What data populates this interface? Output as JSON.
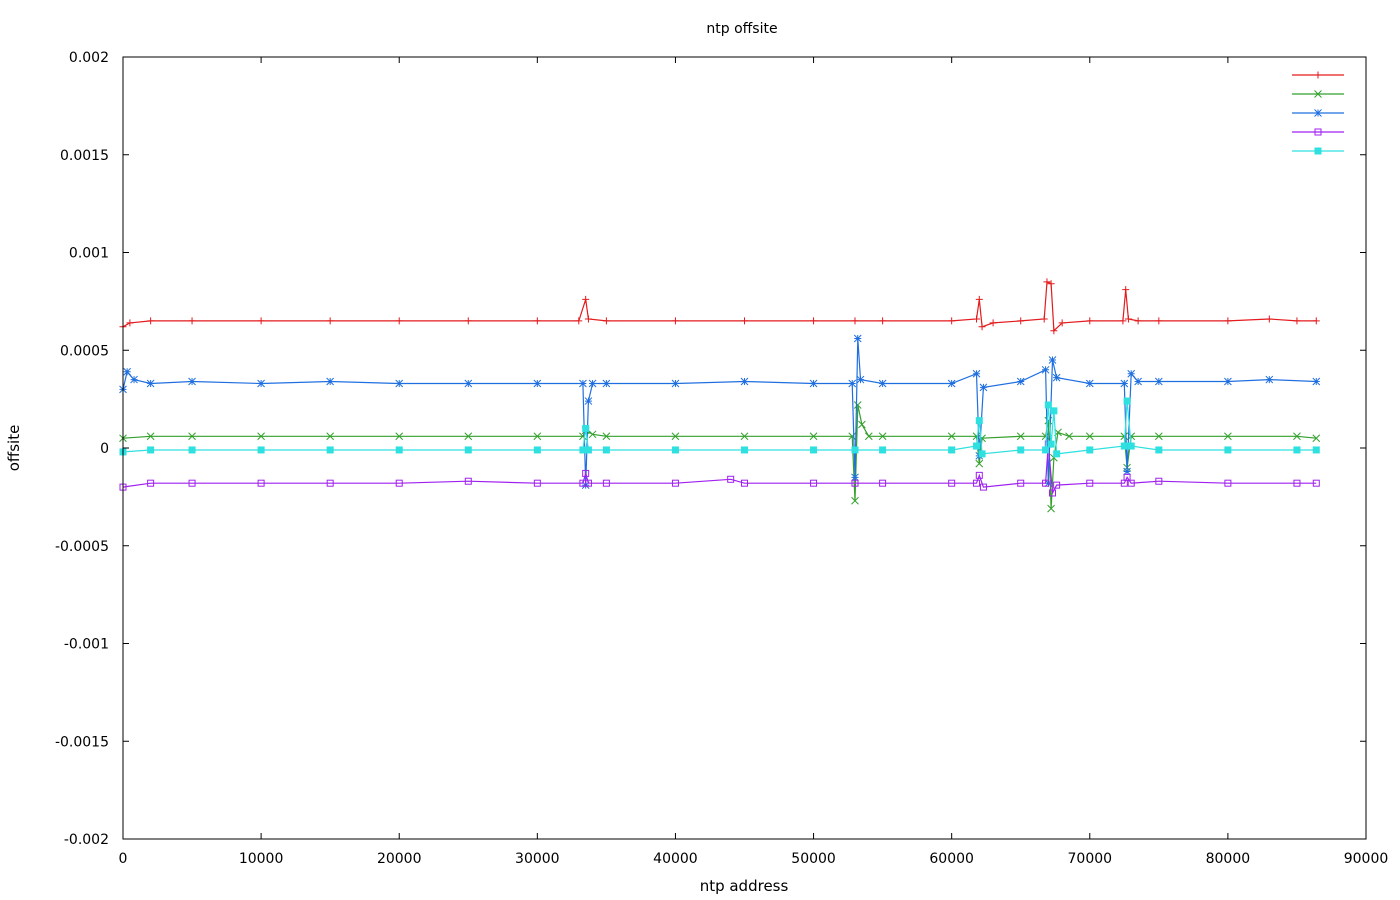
{
  "chart_data": {
    "type": "line",
    "title": "ntp offsite",
    "xlabel": "ntp address",
    "ylabel": "offsite",
    "xlim": [
      0,
      90000
    ],
    "ylim": [
      -0.002,
      0.002
    ],
    "x_ticks": [
      "0",
      "10000",
      "20000",
      "30000",
      "40000",
      "50000",
      "60000",
      "70000",
      "80000",
      "90000"
    ],
    "y_ticks": [
      "-0.002",
      "-0.0015",
      "-0.001",
      "-0.0005",
      "0",
      "0.0005",
      "0.001",
      "0.0015",
      "0.002"
    ],
    "grid": false,
    "legend_position": "top-right",
    "series": [
      {
        "color": "#e41a1c",
        "marker": "plus",
        "points": [
          [
            0,
            0.00062
          ],
          [
            500,
            0.00064
          ],
          [
            2000,
            0.00065
          ],
          [
            5000,
            0.00065
          ],
          [
            10000,
            0.00065
          ],
          [
            15000,
            0.00065
          ],
          [
            20000,
            0.00065
          ],
          [
            25000,
            0.00065
          ],
          [
            30000,
            0.00065
          ],
          [
            33000,
            0.00065
          ],
          [
            33500,
            0.00076
          ],
          [
            33700,
            0.00066
          ],
          [
            35000,
            0.00065
          ],
          [
            40000,
            0.00065
          ],
          [
            45000,
            0.00065
          ],
          [
            50000,
            0.00065
          ],
          [
            53000,
            0.00065
          ],
          [
            55000,
            0.00065
          ],
          [
            60000,
            0.00065
          ],
          [
            61800,
            0.00066
          ],
          [
            62000,
            0.00076
          ],
          [
            62200,
            0.00062
          ],
          [
            63000,
            0.00064
          ],
          [
            65000,
            0.00065
          ],
          [
            66700,
            0.00066
          ],
          [
            66900,
            0.00085
          ],
          [
            67200,
            0.00084
          ],
          [
            67400,
            0.0006
          ],
          [
            68000,
            0.00064
          ],
          [
            70000,
            0.00065
          ],
          [
            72400,
            0.00065
          ],
          [
            72600,
            0.00081
          ],
          [
            72800,
            0.00066
          ],
          [
            73500,
            0.00065
          ],
          [
            75000,
            0.00065
          ],
          [
            80000,
            0.00065
          ],
          [
            83000,
            0.00066
          ],
          [
            85000,
            0.00065
          ],
          [
            86400,
            0.00065
          ]
        ]
      },
      {
        "color": "#33a02c",
        "marker": "x",
        "points": [
          [
            0,
            5e-05
          ],
          [
            2000,
            6e-05
          ],
          [
            5000,
            6e-05
          ],
          [
            10000,
            6e-05
          ],
          [
            15000,
            6e-05
          ],
          [
            20000,
            6e-05
          ],
          [
            25000,
            6e-05
          ],
          [
            30000,
            6e-05
          ],
          [
            33300,
            6e-05
          ],
          [
            33500,
            9e-05
          ],
          [
            34000,
            7e-05
          ],
          [
            35000,
            6e-05
          ],
          [
            40000,
            6e-05
          ],
          [
            45000,
            6e-05
          ],
          [
            50000,
            6e-05
          ],
          [
            52800,
            6e-05
          ],
          [
            53000,
            -0.00027
          ],
          [
            53200,
            0.00022
          ],
          [
            53500,
            0.00012
          ],
          [
            54000,
            6e-05
          ],
          [
            55000,
            6e-05
          ],
          [
            60000,
            6e-05
          ],
          [
            61800,
            6e-05
          ],
          [
            62000,
            -8e-05
          ],
          [
            62200,
            5e-05
          ],
          [
            65000,
            6e-05
          ],
          [
            66800,
            6e-05
          ],
          [
            67000,
            0.00014
          ],
          [
            67200,
            -0.00031
          ],
          [
            67400,
            -5e-05
          ],
          [
            67700,
            8e-05
          ],
          [
            68500,
            6e-05
          ],
          [
            70000,
            6e-05
          ],
          [
            72500,
            6e-05
          ],
          [
            72700,
            -0.0001
          ],
          [
            73000,
            6e-05
          ],
          [
            75000,
            6e-05
          ],
          [
            80000,
            6e-05
          ],
          [
            85000,
            6e-05
          ],
          [
            86400,
            5e-05
          ]
        ]
      },
      {
        "color": "#1f6fe0",
        "marker": "star",
        "points": [
          [
            0,
            0.0003
          ],
          [
            300,
            0.00039
          ],
          [
            800,
            0.00035
          ],
          [
            2000,
            0.00033
          ],
          [
            5000,
            0.00034
          ],
          [
            10000,
            0.00033
          ],
          [
            15000,
            0.00034
          ],
          [
            20000,
            0.00033
          ],
          [
            25000,
            0.00033
          ],
          [
            30000,
            0.00033
          ],
          [
            33300,
            0.00033
          ],
          [
            33500,
            -0.00019
          ],
          [
            33700,
            0.00024
          ],
          [
            34000,
            0.00033
          ],
          [
            35000,
            0.00033
          ],
          [
            40000,
            0.00033
          ],
          [
            45000,
            0.00034
          ],
          [
            50000,
            0.00033
          ],
          [
            52800,
            0.00033
          ],
          [
            53000,
            -0.00015
          ],
          [
            53200,
            0.00056
          ],
          [
            53400,
            0.00035
          ],
          [
            55000,
            0.00033
          ],
          [
            60000,
            0.00033
          ],
          [
            61800,
            0.00038
          ],
          [
            62000,
            -4e-05
          ],
          [
            62300,
            0.00031
          ],
          [
            65000,
            0.00034
          ],
          [
            66800,
            0.0004
          ],
          [
            67000,
            -0.00018
          ],
          [
            67300,
            0.00045
          ],
          [
            67600,
            0.00036
          ],
          [
            70000,
            0.00033
          ],
          [
            72500,
            0.00033
          ],
          [
            72700,
            -0.00012
          ],
          [
            73000,
            0.00038
          ],
          [
            73500,
            0.00034
          ],
          [
            75000,
            0.00034
          ],
          [
            80000,
            0.00034
          ],
          [
            83000,
            0.00035
          ],
          [
            86400,
            0.00034
          ]
        ]
      },
      {
        "color": "#a020f0",
        "marker": "square",
        "points": [
          [
            0,
            -0.0002
          ],
          [
            2000,
            -0.00018
          ],
          [
            5000,
            -0.00018
          ],
          [
            10000,
            -0.00018
          ],
          [
            15000,
            -0.00018
          ],
          [
            20000,
            -0.00018
          ],
          [
            25000,
            -0.00017
          ],
          [
            30000,
            -0.00018
          ],
          [
            33300,
            -0.00018
          ],
          [
            33500,
            -0.00013
          ],
          [
            33700,
            -0.00018
          ],
          [
            35000,
            -0.00018
          ],
          [
            40000,
            -0.00018
          ],
          [
            44000,
            -0.00016
          ],
          [
            45000,
            -0.00018
          ],
          [
            50000,
            -0.00018
          ],
          [
            53000,
            -0.00018
          ],
          [
            55000,
            -0.00018
          ],
          [
            60000,
            -0.00018
          ],
          [
            61800,
            -0.00018
          ],
          [
            62000,
            -0.00014
          ],
          [
            62300,
            -0.0002
          ],
          [
            65000,
            -0.00018
          ],
          [
            66800,
            -0.00018
          ],
          [
            67000,
            2e-05
          ],
          [
            67300,
            -0.00023
          ],
          [
            67600,
            -0.00019
          ],
          [
            70000,
            -0.00018
          ],
          [
            72500,
            -0.00018
          ],
          [
            72700,
            -0.00015
          ],
          [
            73000,
            -0.00018
          ],
          [
            75000,
            -0.00017
          ],
          [
            80000,
            -0.00018
          ],
          [
            85000,
            -0.00018
          ],
          [
            86400,
            -0.00018
          ]
        ]
      },
      {
        "color": "#2ee0e0",
        "marker": "filled-square",
        "points": [
          [
            0,
            -2e-05
          ],
          [
            2000,
            -1e-05
          ],
          [
            5000,
            -1e-05
          ],
          [
            10000,
            -1e-05
          ],
          [
            15000,
            -1e-05
          ],
          [
            20000,
            -1e-05
          ],
          [
            25000,
            -1e-05
          ],
          [
            30000,
            -1e-05
          ],
          [
            33300,
            -1e-05
          ],
          [
            33500,
            0.0001
          ],
          [
            33700,
            -1e-05
          ],
          [
            35000,
            -1e-05
          ],
          [
            40000,
            -1e-05
          ],
          [
            45000,
            -1e-05
          ],
          [
            50000,
            -1e-05
          ],
          [
            53000,
            -1e-05
          ],
          [
            55000,
            -1e-05
          ],
          [
            60000,
            -1e-05
          ],
          [
            61800,
            1e-05
          ],
          [
            62000,
            0.00014
          ],
          [
            62200,
            -3e-05
          ],
          [
            65000,
            -1e-05
          ],
          [
            66800,
            -1e-05
          ],
          [
            67000,
            0.00022
          ],
          [
            67200,
            2e-05
          ],
          [
            67400,
            0.00019
          ],
          [
            67600,
            -3e-05
          ],
          [
            70000,
            -1e-05
          ],
          [
            72500,
            1e-05
          ],
          [
            72700,
            0.00024
          ],
          [
            73000,
            1e-05
          ],
          [
            75000,
            -1e-05
          ],
          [
            80000,
            -1e-05
          ],
          [
            85000,
            -1e-05
          ],
          [
            86400,
            -1e-05
          ]
        ]
      }
    ]
  }
}
